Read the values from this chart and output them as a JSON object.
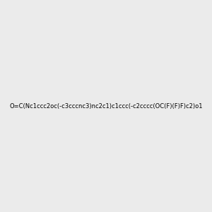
{
  "smiles": "O=C(Nc1ccc2oc(-c3cccnc3)nc2c1)c1ccc(-c2cccc(OC(F)(F)F)c2)o1",
  "image_size": 300,
  "background_color": "#ebebeb",
  "bond_color": "#1a1a1a",
  "atom_colors": {
    "O": "#ff0000",
    "N": "#0000ff",
    "F": "#cc00cc"
  },
  "title": ""
}
